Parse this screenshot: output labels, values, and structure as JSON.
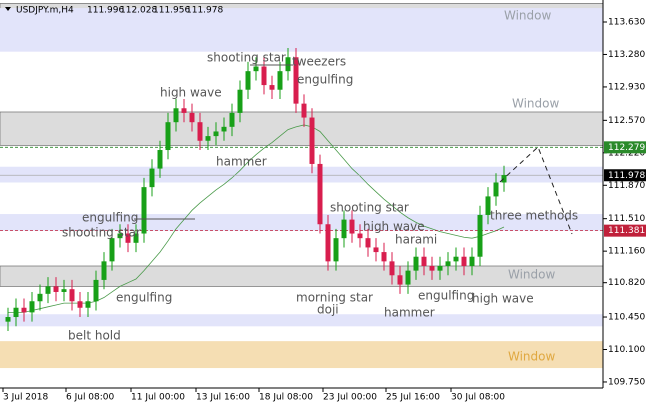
{
  "header": {
    "symbol": "USDJPY.m,H4",
    "ohlc": [
      111.996,
      112.028,
      111.956,
      111.978
    ]
  },
  "chart_data": {
    "type": "candlestick",
    "ylim": [
      109.685,
      113.867
    ],
    "yticks": [
      {
        "value": 113.63,
        "label": "113.630"
      },
      {
        "value": 113.28,
        "label": "113.280"
      },
      {
        "value": 112.93,
        "label": "112.930"
      },
      {
        "value": 112.57,
        "label": "112.570"
      },
      {
        "value": 112.22,
        "label": "112.220"
      },
      {
        "value": 111.87,
        "label": "111.870"
      },
      {
        "value": 111.51,
        "label": "111.510"
      },
      {
        "value": 111.16,
        "label": "111.160"
      },
      {
        "value": 110.82,
        "label": "110.820"
      },
      {
        "value": 110.45,
        "label": "110.450"
      },
      {
        "value": 110.1,
        "label": "110.100"
      },
      {
        "value": 109.75,
        "label": "109.750"
      }
    ],
    "x_labels": [
      "3 Jul 2018",
      "6 Jul 08:00",
      "11 Jul 00:00",
      "13 Jul 16:00",
      "18 Jul 08:00",
      "23 Jul 00:00",
      "25 Jul 16:00",
      "30 Jul 08:00"
    ],
    "up_color": "#18a018",
    "down_color": "#d81e4e",
    "open": [
      110.4,
      110.45,
      110.55,
      110.5,
      110.62,
      110.7,
      110.78,
      110.72,
      110.75,
      110.62,
      110.55,
      110.62,
      110.85,
      111.05,
      111.3,
      111.35,
      111.25,
      111.35,
      111.85,
      112.05,
      112.25,
      112.55,
      112.7,
      112.65,
      112.55,
      112.35,
      112.4,
      112.45,
      112.5,
      112.65,
      112.9,
      113.1,
      113.15,
      112.95,
      112.9,
      113.1,
      113.25,
      112.75,
      112.6,
      112.1,
      111.45,
      111.05,
      111.3,
      111.5,
      111.35,
      111.3,
      111.2,
      111.15,
      111.05,
      110.9,
      110.8,
      110.95,
      111.1,
      111.0,
      110.95,
      111.0,
      111.05,
      111.1,
      111.0,
      111.1,
      111.55,
      111.75,
      111.9
    ],
    "high": [
      110.55,
      110.65,
      110.65,
      110.72,
      110.8,
      110.88,
      110.88,
      110.85,
      110.85,
      110.72,
      110.72,
      110.95,
      111.15,
      111.4,
      111.45,
      111.45,
      111.45,
      111.95,
      112.15,
      112.35,
      112.65,
      112.8,
      112.8,
      112.75,
      112.65,
      112.5,
      112.55,
      112.6,
      112.75,
      113.0,
      113.2,
      113.25,
      113.25,
      113.05,
      113.2,
      113.35,
      113.35,
      112.85,
      112.7,
      112.2,
      111.55,
      111.4,
      111.6,
      111.6,
      111.45,
      111.4,
      111.3,
      111.25,
      111.15,
      111.0,
      111.05,
      111.2,
      111.2,
      111.1,
      111.1,
      111.15,
      111.2,
      111.2,
      111.2,
      111.65,
      111.85,
      112.0,
      112.08
    ],
    "low": [
      110.3,
      110.35,
      110.4,
      110.4,
      110.52,
      110.6,
      110.62,
      110.62,
      110.52,
      110.45,
      110.45,
      110.52,
      110.75,
      110.95,
      111.2,
      111.15,
      111.15,
      111.25,
      111.75,
      111.95,
      112.15,
      112.45,
      112.55,
      112.45,
      112.25,
      112.25,
      112.3,
      112.35,
      112.4,
      112.55,
      112.8,
      113.0,
      112.85,
      112.8,
      112.8,
      113.0,
      112.65,
      112.5,
      112.0,
      111.35,
      110.95,
      110.95,
      111.2,
      111.25,
      111.2,
      111.1,
      111.05,
      110.95,
      110.8,
      110.7,
      110.7,
      110.85,
      110.9,
      110.85,
      110.85,
      110.9,
      110.95,
      110.9,
      110.9,
      111.0,
      111.45,
      111.65,
      111.8
    ],
    "close": [
      110.45,
      110.55,
      110.5,
      110.62,
      110.7,
      110.78,
      110.72,
      110.75,
      110.62,
      110.55,
      110.62,
      110.85,
      111.05,
      111.3,
      111.35,
      111.25,
      111.35,
      111.85,
      112.05,
      112.25,
      112.55,
      112.7,
      112.65,
      112.55,
      112.35,
      112.4,
      112.45,
      112.5,
      112.65,
      112.9,
      113.1,
      113.15,
      112.95,
      112.9,
      113.1,
      113.25,
      112.75,
      112.6,
      112.1,
      111.45,
      111.05,
      111.3,
      111.5,
      111.35,
      111.3,
      111.2,
      111.15,
      111.05,
      110.9,
      110.8,
      110.95,
      111.1,
      111.0,
      110.95,
      111.0,
      111.05,
      111.1,
      111.0,
      111.1,
      111.55,
      111.75,
      111.9,
      111.98
    ],
    "moving_average": {
      "color": "#4a9a4a",
      "values": [
        110.5,
        110.5,
        110.5,
        110.52,
        110.54,
        110.56,
        110.58,
        110.6,
        110.6,
        110.6,
        110.6,
        110.62,
        110.66,
        110.72,
        110.78,
        110.82,
        110.86,
        110.95,
        111.05,
        111.15,
        111.27,
        111.4,
        111.5,
        111.6,
        111.68,
        111.75,
        111.82,
        111.88,
        111.95,
        112.03,
        112.12,
        112.2,
        112.27,
        112.33,
        112.4,
        112.47,
        112.5,
        112.52,
        112.5,
        112.45,
        112.35,
        112.25,
        112.15,
        112.05,
        111.97,
        111.88,
        111.8,
        111.72,
        111.65,
        111.58,
        111.52,
        111.47,
        111.43,
        111.4,
        111.37,
        111.35,
        111.33,
        111.31,
        111.3,
        111.32,
        111.35,
        111.38,
        111.42
      ]
    },
    "zones": [
      {
        "from": 113.56,
        "to": 113.83,
        "color": "#dcdcdc",
        "label": "Window"
      },
      {
        "from": 113.31,
        "to": 113.78,
        "color": "#e2e4fa"
      },
      {
        "from": 112.3,
        "to": 112.66,
        "color": "#dcdcdc",
        "label": "Window"
      },
      {
        "from": 111.9,
        "to": 112.07,
        "color": "#e2e4fa"
      },
      {
        "from": 111.38,
        "to": 111.56,
        "color": "#e2e4fa"
      },
      {
        "from": 110.78,
        "to": 111.0,
        "color": "#dcdcdc",
        "label": "Window"
      },
      {
        "from": 110.35,
        "to": 110.48,
        "color": "#e2e4fa"
      },
      {
        "from": 109.9,
        "to": 110.19,
        "color": "#f5deb3",
        "label": "Window"
      }
    ],
    "levels": [
      {
        "value": 112.279,
        "color": "#2a8a2a"
      },
      {
        "value": 111.381,
        "color": "#c0203a"
      },
      {
        "value": 111.978,
        "color": "#000000"
      }
    ],
    "annotations": [
      "shooting star",
      "tweezers",
      "engulfing",
      "high wave",
      "hammer",
      "engulfing",
      "shooting star",
      "engulfing",
      "belt hold",
      "shooting star",
      "high wave",
      "harami",
      "three methods",
      "morning star",
      "doji",
      "engulfing",
      "hammer",
      "high wave"
    ]
  }
}
